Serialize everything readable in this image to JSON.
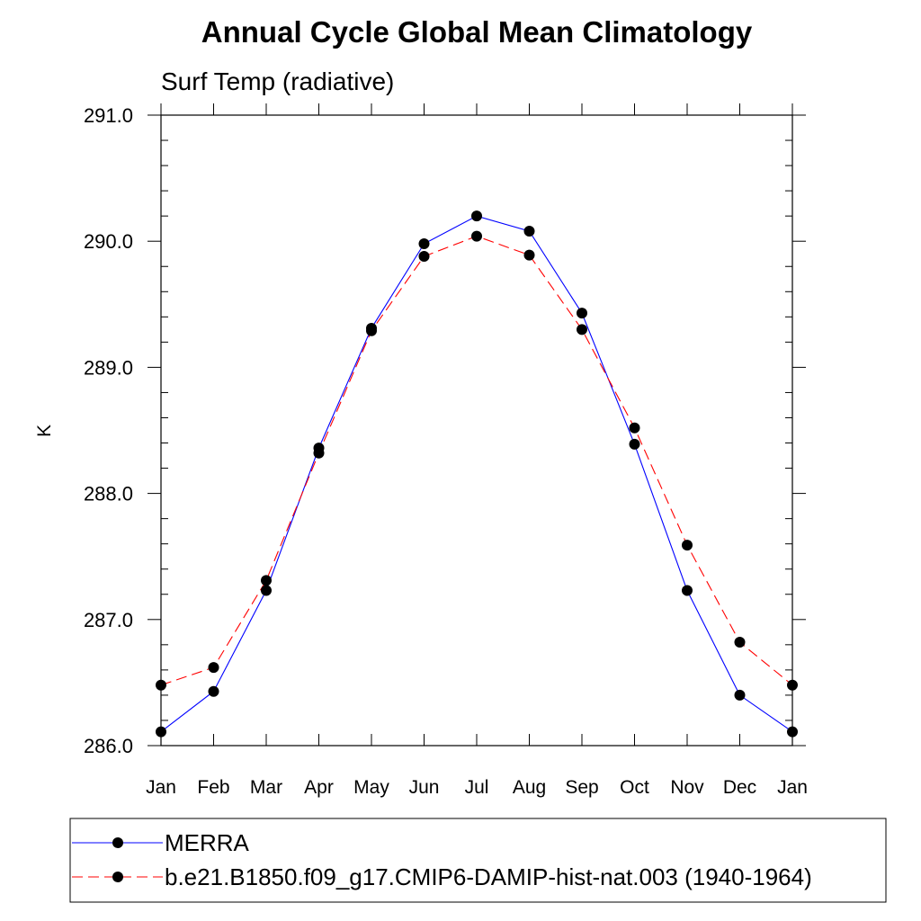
{
  "chart_data": {
    "type": "line",
    "title": "Annual Cycle Global Mean Climatology",
    "subtitle": "Surf Temp (radiative)",
    "xlabel": "",
    "ylabel": "K",
    "categories": [
      "Jan",
      "Feb",
      "Mar",
      "Apr",
      "May",
      "Jun",
      "Jul",
      "Aug",
      "Sep",
      "Oct",
      "Nov",
      "Dec",
      "Jan"
    ],
    "ylim": [
      286.0,
      291.0
    ],
    "yticks": [
      "286.0",
      "287.0",
      "288.0",
      "289.0",
      "290.0",
      "291.0"
    ],
    "grid": false,
    "legend_position": "bottom",
    "series": [
      {
        "name": "MERRA",
        "color": "#0000ff",
        "dash": "solid",
        "values": [
          286.11,
          286.43,
          287.23,
          288.36,
          289.31,
          289.98,
          290.2,
          290.08,
          289.43,
          288.39,
          287.23,
          286.4,
          286.11
        ]
      },
      {
        "name": "b.e21.B1850.f09_g17.CMIP6-DAMIP-hist-nat.003 (1940-1964)",
        "color": "#ff0000",
        "dash": "dashed",
        "values": [
          286.48,
          286.62,
          287.31,
          288.32,
          289.29,
          289.88,
          290.04,
          289.89,
          289.3,
          288.52,
          287.59,
          286.82,
          286.48
        ]
      }
    ]
  }
}
